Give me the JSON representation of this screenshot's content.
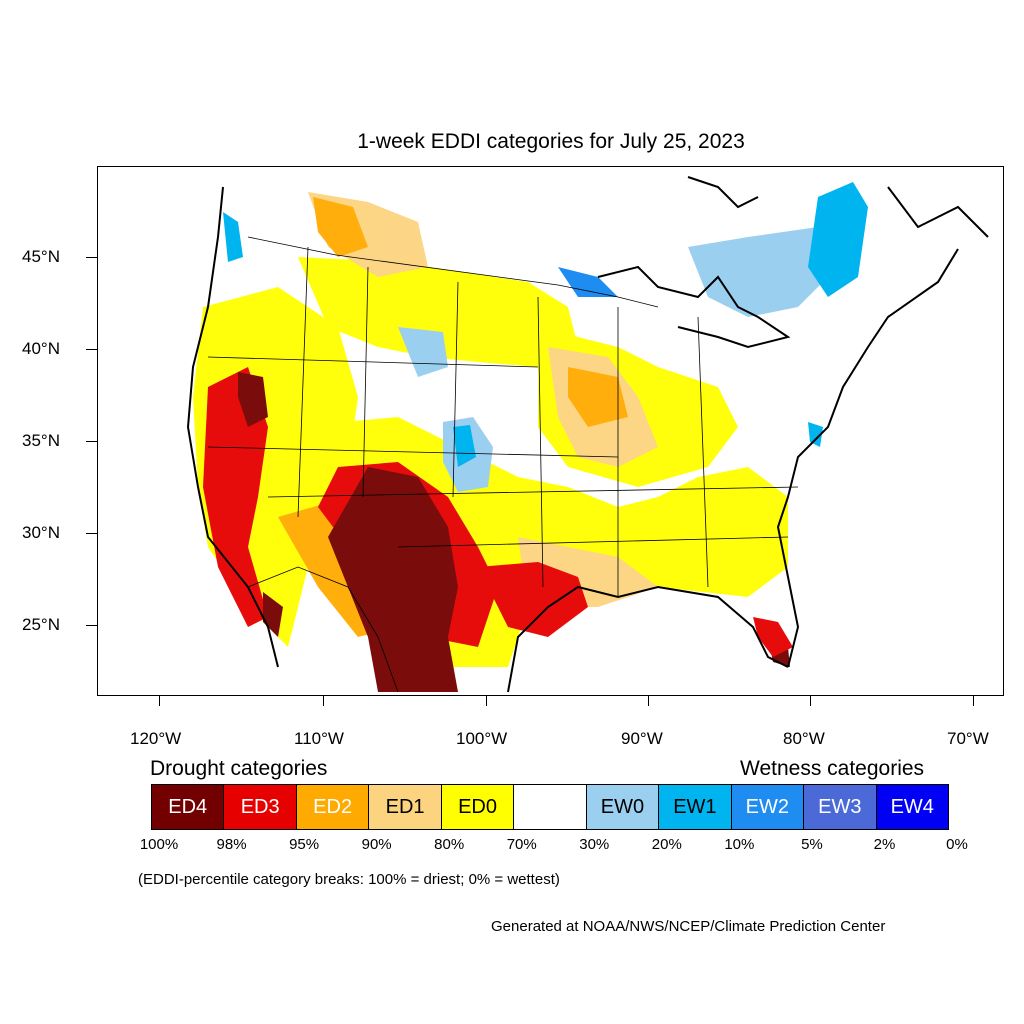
{
  "map": {
    "title": "1-week EDDI categories for July 25, 2023",
    "lat_labels": [
      "45°N",
      "40°N",
      "35°N",
      "30°N",
      "25°N"
    ],
    "lon_labels": [
      "120°W",
      "110°W",
      "100°W",
      "90°W",
      "80°W",
      "70°W"
    ],
    "land_color": "#ffffff",
    "boundary_color": "#000000"
  },
  "legend": {
    "drought_heading": "Drought categories",
    "wetness_heading": "Wetness categories",
    "categories": [
      {
        "label": "ED4",
        "color": "#730000",
        "text_color": "#ffffff"
      },
      {
        "label": "ED3",
        "color": "#e60000",
        "text_color": "#ffffff"
      },
      {
        "label": "ED2",
        "color": "#ffaa00",
        "text_color": "#ffffff"
      },
      {
        "label": "ED1",
        "color": "#fcd37f",
        "text_color": "#000000"
      },
      {
        "label": "ED0",
        "color": "#ffff00",
        "text_color": "#000000"
      },
      {
        "label": "",
        "color": "#ffffff",
        "text_color": "#000000"
      },
      {
        "label": "EW0",
        "color": "#9bcfef",
        "text_color": "#000000"
      },
      {
        "label": "EW1",
        "color": "#00b4f0",
        "text_color": "#000000"
      },
      {
        "label": "EW2",
        "color": "#1e8cf0",
        "text_color": "#ffffff"
      },
      {
        "label": "EW3",
        "color": "#4b69d7",
        "text_color": "#ffffff"
      },
      {
        "label": "EW4",
        "color": "#0000f5",
        "text_color": "#ffffff"
      }
    ],
    "percentiles": [
      "100%",
      "98%",
      "95%",
      "90%",
      "80%",
      "70%",
      "30%",
      "20%",
      "10%",
      "5%",
      "2%",
      "0%"
    ]
  },
  "note": "(EDDI-percentile category breaks: 100% = driest; 0% = wettest)",
  "credit": "Generated at NOAA/NWS/NCEP/Climate Prediction Center"
}
